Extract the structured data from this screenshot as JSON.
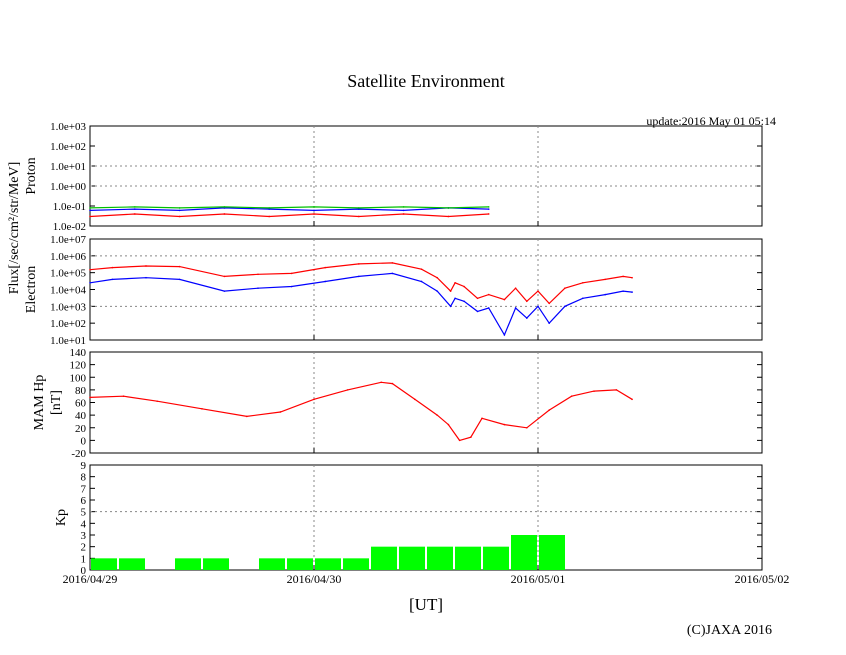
{
  "title": "Satellite Environment",
  "update": "update:2016 May 01 05:14",
  "copyright": "(C)JAXA 2016",
  "xlabel": "[UT]",
  "flux_label": "Flux[/sec/cm²/str/MeV]",
  "colors": {
    "red": "#ff0000",
    "blue": "#0000ff",
    "green": "#00c000",
    "bar": "#00ff00",
    "grid": "#888888"
  },
  "chart_data": [
    {
      "type": "line",
      "name": "proton",
      "ylabel": "Proton",
      "yscale": "log",
      "ylim": [
        0.01,
        1000
      ],
      "ticks": [
        0.01,
        0.1,
        1,
        10,
        100,
        1000
      ],
      "tick_labels": [
        "1.0e-02",
        "1.0e-01",
        "1.0e+00",
        "1.0e+01",
        "1.0e+02",
        "1.0e+03"
      ],
      "series": [
        {
          "name": "proton-blue",
          "color": "#0000ff",
          "x": [
            0,
            0.2,
            0.4,
            0.6,
            0.8,
            1.0,
            1.2,
            1.4,
            1.6,
            1.78
          ],
          "y": [
            0.06,
            0.07,
            0.06,
            0.08,
            0.07,
            0.06,
            0.07,
            0.06,
            0.08,
            0.07
          ]
        },
        {
          "name": "proton-green",
          "color": "#00c000",
          "x": [
            0,
            0.2,
            0.4,
            0.6,
            0.8,
            1.0,
            1.2,
            1.4,
            1.6,
            1.78
          ],
          "y": [
            0.08,
            0.09,
            0.08,
            0.09,
            0.08,
            0.09,
            0.08,
            0.09,
            0.08,
            0.09
          ]
        },
        {
          "name": "proton-red",
          "color": "#ff0000",
          "x": [
            0,
            0.2,
            0.4,
            0.6,
            0.8,
            1.0,
            1.2,
            1.4,
            1.6,
            1.78
          ],
          "y": [
            0.03,
            0.04,
            0.03,
            0.04,
            0.03,
            0.04,
            0.03,
            0.04,
            0.03,
            0.04
          ]
        }
      ]
    },
    {
      "type": "line",
      "name": "electron",
      "ylabel": "Electron",
      "yscale": "log",
      "ylim": [
        10,
        10000000
      ],
      "ticks": [
        10,
        100,
        1000,
        10000,
        100000,
        1000000,
        10000000
      ],
      "tick_labels": [
        "1.0e+01",
        "1.0e+02",
        "1.0e+03",
        "1.0e+04",
        "1.0e+05",
        "1.0e+06",
        "1.0e+07"
      ],
      "series": [
        {
          "name": "electron-red",
          "color": "#ff0000",
          "x": [
            0,
            0.1,
            0.25,
            0.4,
            0.6,
            0.75,
            0.9,
            1.05,
            1.2,
            1.35,
            1.48,
            1.55,
            1.61,
            1.63,
            1.67,
            1.73,
            1.78,
            1.85,
            1.9,
            1.95,
            2.0,
            2.05,
            2.12,
            2.2,
            2.3,
            2.38,
            2.42
          ],
          "y": [
            150000,
            200000,
            250000,
            230000,
            60000,
            80000,
            90000,
            200000,
            330000,
            380000,
            160000,
            50000,
            8000,
            25000,
            15000,
            3000,
            5000,
            2500,
            12000,
            2000,
            8000,
            1500,
            12000,
            25000,
            40000,
            60000,
            50000
          ]
        },
        {
          "name": "electron-blue",
          "color": "#0000ff",
          "x": [
            0,
            0.1,
            0.25,
            0.4,
            0.6,
            0.75,
            0.9,
            1.05,
            1.2,
            1.35,
            1.48,
            1.55,
            1.61,
            1.63,
            1.67,
            1.73,
            1.78,
            1.85,
            1.9,
            1.95,
            2.0,
            2.05,
            2.12,
            2.2,
            2.3,
            2.38,
            2.42
          ],
          "y": [
            25000,
            40000,
            50000,
            40000,
            8000,
            12000,
            15000,
            30000,
            60000,
            90000,
            30000,
            8000,
            1000,
            3000,
            2000,
            500,
            800,
            20,
            800,
            200,
            1000,
            100,
            1000,
            3000,
            5000,
            8000,
            7000
          ]
        }
      ]
    },
    {
      "type": "line",
      "name": "mam-hp",
      "ylabel": "MAM Hp",
      "ylabel2": "[nT]",
      "ylim": [
        -20,
        140
      ],
      "ticks": [
        -20,
        0,
        20,
        40,
        60,
        80,
        100,
        120,
        140
      ],
      "tick_labels": [
        "-20",
        "0",
        "20",
        "40",
        "60",
        "80",
        "100",
        "120",
        "140"
      ],
      "series": [
        {
          "name": "mam-hp-red",
          "color": "#ff0000",
          "x": [
            0,
            0.15,
            0.3,
            0.5,
            0.7,
            0.85,
            1.0,
            1.15,
            1.3,
            1.35,
            1.45,
            1.55,
            1.6,
            1.65,
            1.7,
            1.75,
            1.85,
            1.95,
            2.05,
            2.15,
            2.25,
            2.35,
            2.42
          ],
          "y": [
            68,
            70,
            62,
            50,
            38,
            45,
            65,
            80,
            92,
            90,
            65,
            40,
            25,
            0,
            5,
            35,
            25,
            20,
            48,
            70,
            78,
            80,
            65
          ]
        }
      ]
    },
    {
      "type": "bar",
      "name": "kp",
      "ylabel": "Kp",
      "ylim": [
        0,
        9
      ],
      "ticks": [
        0,
        1,
        2,
        3,
        4,
        5,
        6,
        7,
        8,
        9
      ],
      "tick_labels": [
        "0",
        "1",
        "2",
        "3",
        "4",
        "5",
        "6",
        "7",
        "8",
        "9"
      ],
      "bar_width_days": 0.125,
      "x": [
        0,
        0.125,
        0.375,
        0.5,
        0.75,
        0.875,
        1.0,
        1.125,
        1.25,
        1.375,
        1.5,
        1.625,
        1.75,
        1.875,
        2.0
      ],
      "values": [
        1,
        1,
        1,
        1,
        1,
        1,
        1,
        1,
        2,
        2,
        2,
        2,
        2,
        3,
        3
      ]
    }
  ],
  "xaxis": {
    "xlim": [
      0,
      3
    ],
    "ticks": [
      0,
      1,
      2,
      3
    ],
    "tick_labels": [
      "2016/04/29",
      "2016/04/30",
      "2016/05/01",
      "2016/05/02"
    ]
  }
}
